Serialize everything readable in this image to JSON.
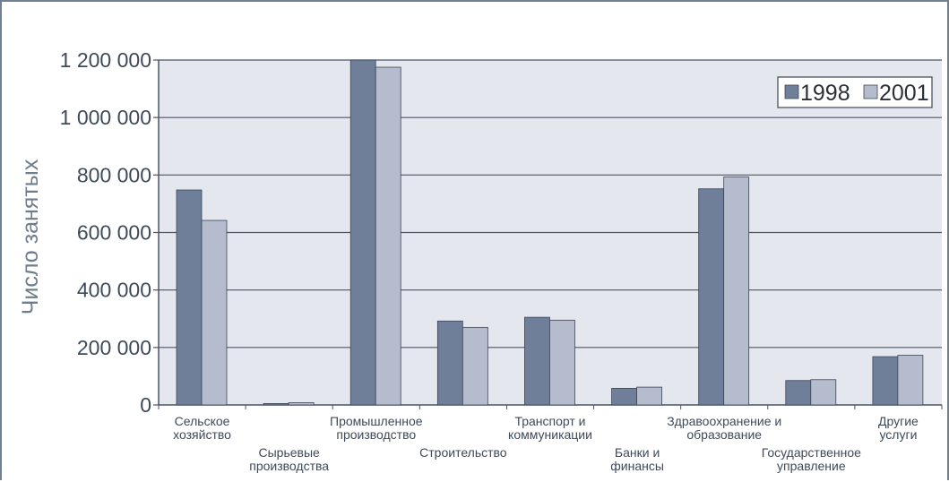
{
  "chart_data": {
    "type": "bar",
    "ylabel": "Число занятых",
    "ylim": [
      0,
      1200000
    ],
    "yticks": [
      0,
      200000,
      400000,
      600000,
      800000,
      1000000,
      1200000
    ],
    "ytick_labels": [
      "0",
      "200 000",
      "400 000",
      "600 000",
      "800 000",
      "1 000 000",
      "1 200 000"
    ],
    "grid": true,
    "legend_position": "top-right",
    "categories": [
      [
        "Сельское",
        "хозяйство"
      ],
      [
        "Сырьевые",
        "производства"
      ],
      [
        "Промышленное",
        "производство"
      ],
      [
        "Строительство"
      ],
      [
        "Транспорт и",
        "коммуникации"
      ],
      [
        "Банки и",
        "финансы"
      ],
      [
        "Здравоохранение и",
        "образование"
      ],
      [
        "Государственное",
        "управление"
      ],
      [
        "Другие",
        "услуги"
      ]
    ],
    "series": [
      {
        "name": "1998",
        "color": "#6f7f99",
        "values": [
          748000,
          5000,
          1200000,
          292000,
          305000,
          58000,
          752000,
          85000,
          168000
        ]
      },
      {
        "name": "2001",
        "color": "#b4bccd",
        "values": [
          642000,
          8000,
          1175000,
          270000,
          295000,
          62000,
          793000,
          88000,
          173000
        ]
      }
    ],
    "colors": {
      "plot_background": "#e4e7ee",
      "grid": "#48566a",
      "axis": "#48566a",
      "frame": "#6f7f94"
    }
  }
}
